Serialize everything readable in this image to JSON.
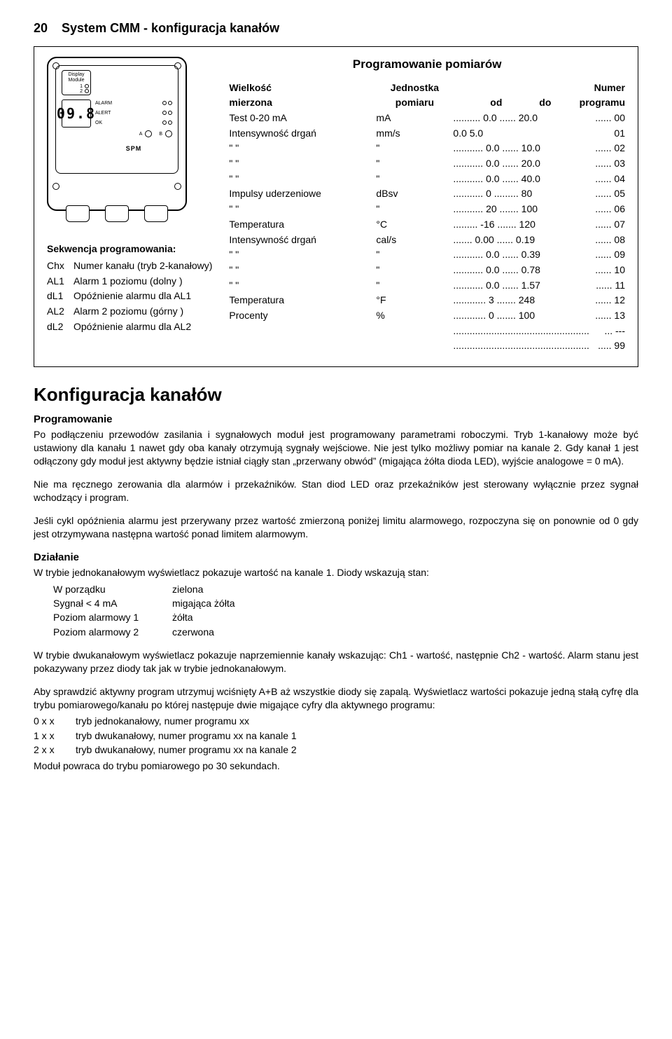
{
  "header": {
    "page_number": "20",
    "title": "System CMM - konfiguracja kanałów"
  },
  "device": {
    "display_module_label": "Display\nModule",
    "ch1": "1",
    "ch2": "2",
    "seg": "09.8",
    "alarm": "ALARM",
    "alert": "ALERT",
    "ok": "OK",
    "a": "A",
    "b": "B",
    "brand": "SPM"
  },
  "sequence": {
    "title": "Sekwencja programowania:",
    "rows": [
      {
        "code": "Chx",
        "text": "Numer kanału (tryb 2-kanałowy)"
      },
      {
        "code": "AL1",
        "text": "Alarm 1 poziomu (dolny )"
      },
      {
        "code": "dL1",
        "text": "Opóźnienie alarmu dla AL1"
      },
      {
        "code": "AL2",
        "text": "Alarm 2 poziomu (górny )"
      },
      {
        "code": "dL2",
        "text": "Opóźnienie alarmu dla AL2"
      }
    ]
  },
  "prog": {
    "title": "Programowanie pomiarów",
    "hdr": {
      "c1a": "Wielkość",
      "c1b": "mierzona",
      "c2a": "Jednostka",
      "c2b": "pomiaru",
      "c3": "od",
      "c4": "do",
      "c5a": "Numer",
      "c5b": "programu"
    },
    "rows": [
      {
        "name": "Test 0-20 mA",
        "unit": "mA",
        "range": ".......... 0.0 ...... 20.0",
        "num": "...... 00"
      },
      {
        "name": "Intensywność drgań",
        "unit": "mm/s",
        "range": "     0.0      5.0",
        "num": "     01"
      },
      {
        "name": "\"        \"",
        "unit": "\"",
        "range": "........... 0.0 ...... 10.0",
        "num": "...... 02"
      },
      {
        "name": "\"        \"",
        "unit": "\"",
        "range": "........... 0.0 ...... 20.0",
        "num": "...... 03"
      },
      {
        "name": "\"        \"",
        "unit": "\"",
        "range": "........... 0.0 ...... 40.0",
        "num": "...... 04"
      },
      {
        "name": "Impulsy uderzeniowe",
        "unit": "dBsv",
        "range": "........... 0 ......... 80",
        "num": "...... 05"
      },
      {
        "name": "\"        \"",
        "unit": "\"",
        "range": "........... 20 ....... 100",
        "num": "...... 06"
      },
      {
        "name": "Temperatura",
        "unit": "°C",
        "range": "......... -16 ....... 120",
        "num": "...... 07"
      },
      {
        "name": "Intensywność drgań",
        "unit": "cal/s",
        "range": "....... 0.00 ...... 0.19",
        "num": "...... 08"
      },
      {
        "name": "\"        \"",
        "unit": "\"",
        "range": "........... 0.0 ...... 0.39",
        "num": "...... 09"
      },
      {
        "name": "\"        \"",
        "unit": "\"",
        "range": "........... 0.0 ...... 0.78",
        "num": "...... 10"
      },
      {
        "name": "\"        \"",
        "unit": "\"",
        "range": "........... 0.0 ...... 1.57",
        "num": "...... 11"
      },
      {
        "name": "Temperatura",
        "unit": "°F",
        "range": "............ 3 ....... 248",
        "num": "...... 12"
      },
      {
        "name": "Procenty",
        "unit": "%",
        "range": "............ 0 ....... 100",
        "num": "...... 13"
      },
      {
        "name": "",
        "unit": "",
        "range": "..................................................",
        "num": "... ---"
      },
      {
        "name": "",
        "unit": "",
        "range": "..................................................",
        "num": "..... 99"
      }
    ]
  },
  "body": {
    "heading": "Konfiguracja kanałów",
    "programming_h": "Programowanie",
    "p1": "Po podłączeniu przewodów zasilania i sygnałowych moduł jest programowany parametrami roboczymi. Tryb 1-kanałowy może być ustawiony dla kanału 1 nawet gdy oba kanały otrzymują sygnały wejściowe. Nie jest tylko możliwy pomiar na kanale 2. Gdy kanał 1 jest odłączony gdy moduł jest aktywny będzie istniał ciągły stan „przerwany obwód” (migająca żółta dioda LED), wyjście analogowe = 0 mA).",
    "p2": "Nie ma ręcznego zerowania dla alarmów i przekaźników. Stan diod LED oraz przekaźników jest sterowany wyłącznie przez sygnał wchodzący i program.",
    "p3": "Jeśli cykl opóźnienia alarmu jest przerywany przez wartość zmierzoną poniżej limitu alarmowego, rozpoczyna się on ponownie od 0 gdy jest otrzymywana następna wartość ponad limitem alarmowym.",
    "operation_h": "Działanie",
    "p4": "W trybie jednokanałowym wyświetlacz pokazuje wartość na kanale 1. Diody wskazują stan:",
    "states": [
      {
        "k": "W porządku",
        "v": "zielona"
      },
      {
        "k": "Sygnał < 4 mA",
        "v": "migająca żółta"
      },
      {
        "k": "Poziom alarmowy 1",
        "v": "żółta"
      },
      {
        "k": "Poziom alarmowy 2",
        "v": "czerwona"
      }
    ],
    "p5": "W trybie dwukanałowym wyświetlacz pokazuje naprzemiennie kanały wskazując: Ch1 - wartość, następnie Ch2 - wartość. Alarm stanu jest pokazywany przez diody tak jak w trybie jednokanałowym.",
    "p6": "Aby sprawdzić aktywny program utrzymuj wciśnięty A+B aż wszystkie diody się zapalą. Wyświetlacz wartości pokazuje jedną stałą cyfrę dla trybu pomiarowego/kanału po której następuje dwie migające cyfry dla aktywnego programu:",
    "modes": [
      {
        "k": "0 x x",
        "v": "tryb jednokanałowy, numer programu xx"
      },
      {
        "k": "1 x x",
        "v": "tryb dwukanałowy, numer programu xx na kanale 1"
      },
      {
        "k": "2 x x",
        "v": "tryb dwukanałowy, numer programu xx na kanale 2"
      }
    ],
    "p7": "Moduł powraca do trybu pomiarowego po 30 sekundach."
  }
}
